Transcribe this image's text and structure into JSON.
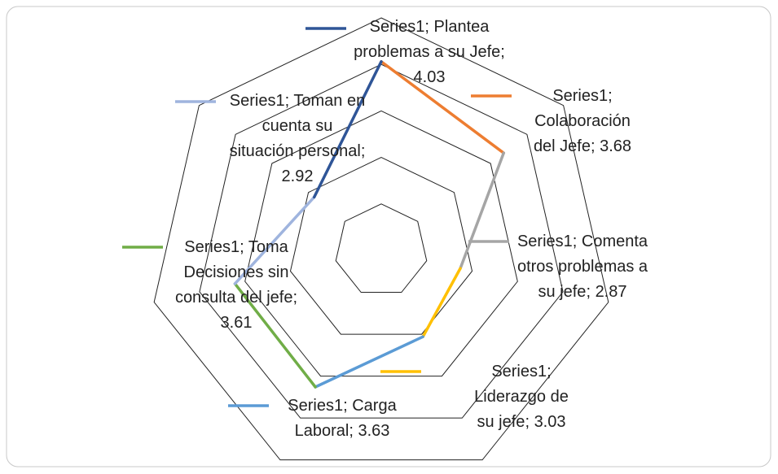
{
  "chart_data": {
    "type": "radar",
    "series": [
      {
        "name": "Series1",
        "values": [
          4.03,
          3.68,
          2.87,
          3.03,
          3.63,
          3.61,
          2.92
        ]
      }
    ],
    "categories": [
      "Plantea problemas a su Jefe",
      "Colaboración del Jefe",
      "Comenta otros problemas a su jefe",
      "Liderazgo de su jefe",
      "Carga Laboral",
      "Toma Decisiones sin consulta del jefe",
      "Toman en cuenta su situación personal"
    ],
    "colors": [
      "#2f5597",
      "#ed7d31",
      "#a5a5a5",
      "#ffc000",
      "#5b9bd5",
      "#70ad47",
      "#9fb4de"
    ],
    "ylim": [
      2,
      4.5
    ],
    "yticks": [
      2.5,
      3,
      3.5,
      4,
      4.5
    ]
  }
}
